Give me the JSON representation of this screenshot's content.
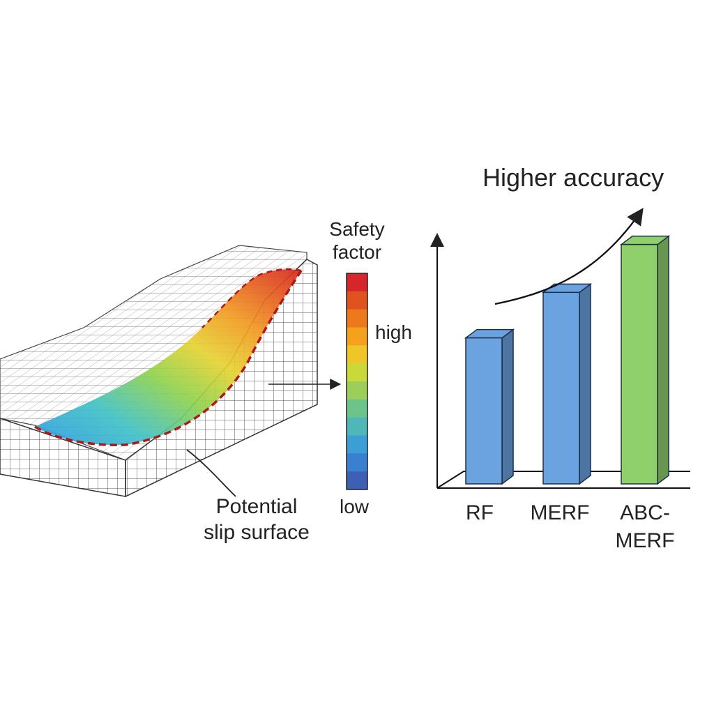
{
  "slope_model": {
    "slip_label_line1": "Potential",
    "slip_label_line2": "slip surface"
  },
  "colorbar": {
    "title_line1": "Safety",
    "title_line2": "factor",
    "high_label": "high",
    "low_label": "low",
    "colors": [
      "#d7262b",
      "#e0531f",
      "#ec7a1c",
      "#f4a21e",
      "#f0c52a",
      "#c9d93a",
      "#9ccf5a",
      "#6cc48c",
      "#4fb7b8",
      "#3b9fd6",
      "#3a7fd0",
      "#3d5fb6"
    ]
  },
  "chart": {
    "annotation": "Higher accuracy",
    "accent_colors": {
      "blue": "#6aa3e0",
      "green": "#8fd06a"
    }
  },
  "chart_data": {
    "type": "bar",
    "categories": [
      "RF",
      "MERF",
      "ABC-MERF"
    ],
    "category_lines": [
      [
        "RF"
      ],
      [
        "MERF"
      ],
      [
        "ABC-",
        "MERF"
      ]
    ],
    "values": [
      0.61,
      0.8,
      1.0
    ],
    "colors": [
      "#6aa3e0",
      "#6aa3e0",
      "#8fd06a"
    ],
    "title": "",
    "xlabel": "",
    "ylabel": "",
    "ylim": [
      0,
      1.2
    ],
    "annotation": "Higher accuracy"
  }
}
